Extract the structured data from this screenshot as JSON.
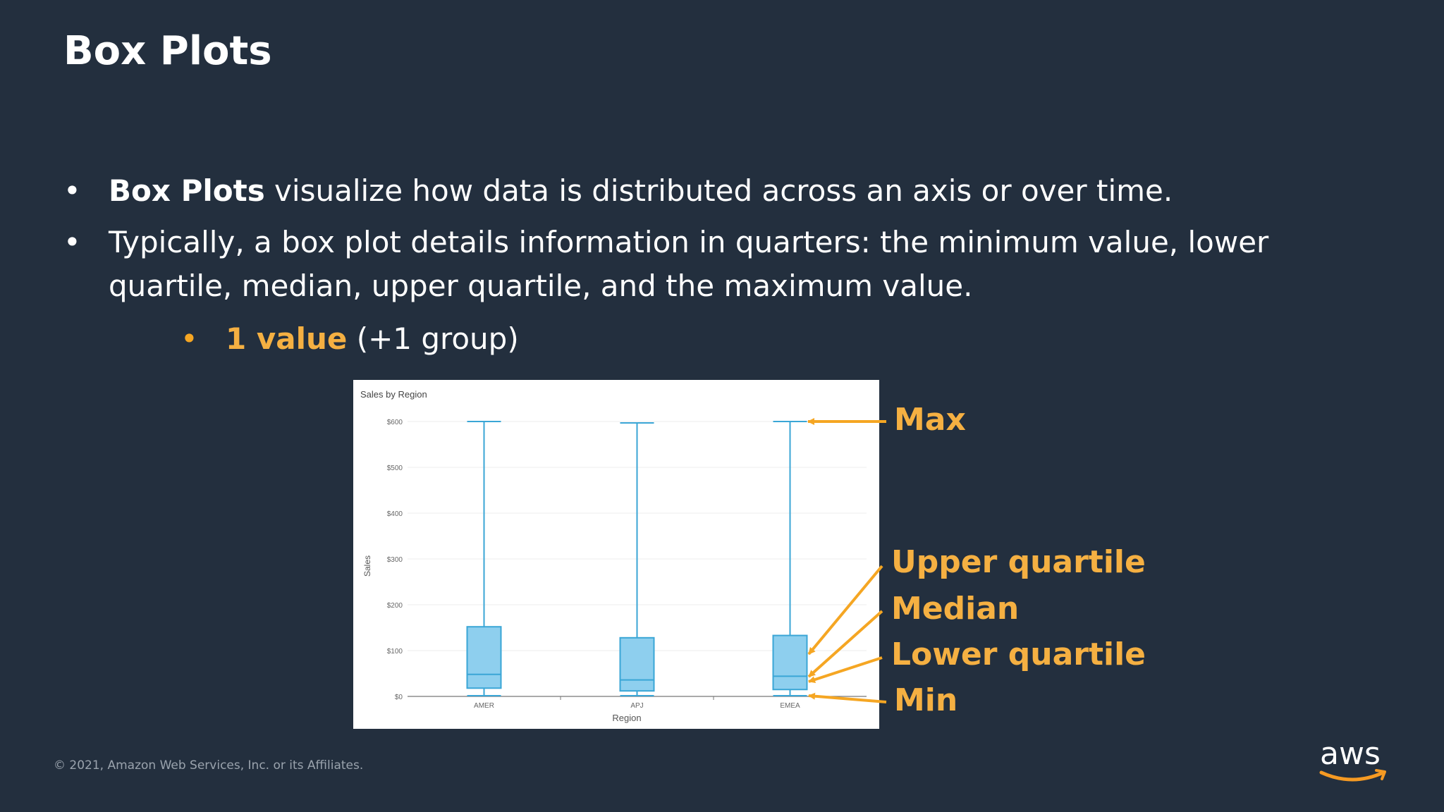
{
  "slide": {
    "title": "Box Plots",
    "bullets": [
      {
        "bold": "Box Plots",
        "rest": " visualize how data is distributed across an axis or over time."
      },
      {
        "line1": "Typically, a box plot details information in quarters: the minimum value, lower",
        "line2": "quartile, median, upper quartile, and the maximum value."
      }
    ],
    "sub_bullet": {
      "highlight": "1 value",
      "rest": " (+1 group)"
    }
  },
  "callouts": {
    "max": "Max",
    "upper_quartile": "Upper quartile",
    "median": "Median",
    "lower_quartile": "Lower quartile",
    "min": "Min"
  },
  "chart_data": {
    "type": "box",
    "title": "Sales by Region",
    "xlabel": "Region",
    "ylabel": "Sales",
    "ylim": [
      0,
      600
    ],
    "y_ticks": [
      "$0",
      "$100",
      "$200",
      "$300",
      "$400",
      "$500",
      "$600"
    ],
    "y_tick_values": [
      0,
      100,
      200,
      300,
      400,
      500,
      600
    ],
    "categories": [
      "AMER",
      "APJ",
      "EMEA"
    ],
    "boxes": [
      {
        "min": 0,
        "q1": 18,
        "median": 48,
        "q3": 152,
        "max": 600
      },
      {
        "min": 0,
        "q1": 12,
        "median": 36,
        "q3": 128,
        "max": 597
      },
      {
        "min": 0,
        "q1": 15,
        "median": 44,
        "q3": 133,
        "max": 600
      }
    ],
    "box_color": "#8ecfee",
    "line_color": "#3aa6d6",
    "grid": true
  },
  "footer": {
    "copyright": "© 2021, Amazon Web Services, Inc. or its Affiliates.",
    "logo_text": "aws"
  },
  "colors": {
    "background": "#232f3e",
    "accent": "#f5b042",
    "smile": "#f59a23"
  }
}
